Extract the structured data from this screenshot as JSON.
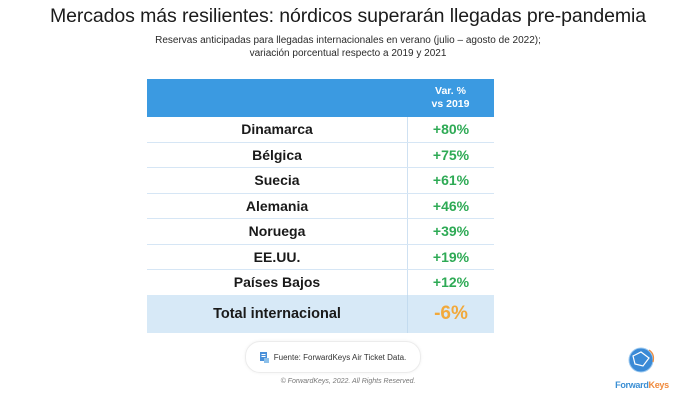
{
  "header": {
    "title": "Mercados más resilientes: nórdicos superarán llegadas pre-pandemia",
    "subtitle_line1": "Reservas anticipadas para llegadas internacionales en verano (julio – agosto de 2022);",
    "subtitle_line2": "variación porcentual respecto a 2019 y 2021"
  },
  "table": {
    "column_header_line1": "Var. %",
    "column_header_line2": "vs 2019",
    "rows": [
      {
        "country": "Dinamarca",
        "value": "+80%"
      },
      {
        "country": "Bélgica",
        "value": "+75%"
      },
      {
        "country": "Suecia",
        "value": "+61%"
      },
      {
        "country": "Alemania",
        "value": "+46%"
      },
      {
        "country": "Noruega",
        "value": "+39%"
      },
      {
        "country": "EE.UU.",
        "value": "+19%"
      },
      {
        "country": "Países Bajos",
        "value": "+12%"
      }
    ],
    "total": {
      "label": "Total internacional",
      "value": "-6%"
    }
  },
  "footer": {
    "source_icon": "document-icon",
    "source": "Fuente: ForwardKeys Air Ticket Data.",
    "copyright": "© ForwardKeys, 2022. All Rights Reserved.",
    "logo_part1": "Forward",
    "logo_part2": "Keys"
  },
  "colors": {
    "header_bg": "#3b9ae1",
    "positive": "#2eaa55",
    "negative": "#f2a93b",
    "total_bg": "#d7e9f7"
  }
}
